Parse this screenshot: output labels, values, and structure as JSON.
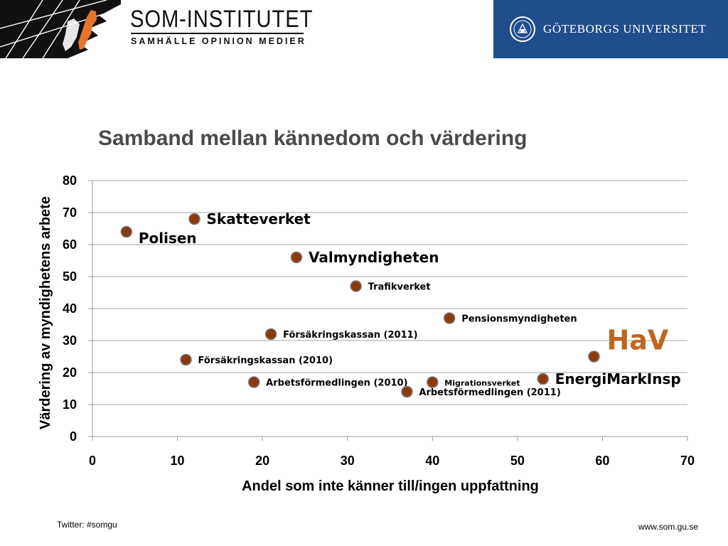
{
  "header": {
    "brand_title": "SOM-INSTITUTET",
    "brand_subtitle": "SAMHÄLLE  OPINION  MEDIER",
    "university": "GÖTEBORGS UNIVERSITET",
    "university_color": "#1f4e8c",
    "logo_accent_color": "#e8742a"
  },
  "footer": {
    "twitter": "Twitter: #somgu",
    "website": "www.som.gu.se"
  },
  "chart_data": {
    "type": "scatter",
    "title": "Samband mellan kännedom och värdering",
    "xlabel": "Andel som inte känner till/ingen uppfattning",
    "ylabel": "Värdering av myndighetens arbete",
    "xlim": [
      0,
      70
    ],
    "ylim": [
      0,
      80
    ],
    "xticks": [
      0,
      10,
      20,
      30,
      40,
      50,
      60,
      70
    ],
    "yticks": [
      0,
      10,
      20,
      30,
      40,
      50,
      60,
      70,
      80
    ],
    "grid": "horizontal",
    "marker_color": "#8b3a0e",
    "highlight_color": "#c0651e",
    "points": [
      {
        "label": "Polisen",
        "x": 4,
        "y": 64,
        "label_size": "large",
        "label_pos": "right-below"
      },
      {
        "label": "Skatteverket",
        "x": 12,
        "y": 68,
        "label_size": "large",
        "label_pos": "right"
      },
      {
        "label": "Valmyndigheten",
        "x": 24,
        "y": 56,
        "label_size": "large",
        "label_pos": "right"
      },
      {
        "label": "Trafikverket",
        "x": 31,
        "y": 47,
        "label_size": "small",
        "label_pos": "right"
      },
      {
        "label": "Pensionsmyndigheten",
        "x": 42,
        "y": 37,
        "label_size": "small",
        "label_pos": "right"
      },
      {
        "label": "Försäkringskassan (2011)",
        "x": 21,
        "y": 32,
        "label_size": "small",
        "label_pos": "right"
      },
      {
        "label": "HaV",
        "x": 59,
        "y": 25,
        "label_size": "huge",
        "label_pos": "right-above",
        "highlight": true
      },
      {
        "label": "Försäkringskassan (2010)",
        "x": 11,
        "y": 24,
        "label_size": "small",
        "label_pos": "right"
      },
      {
        "label": "EnergiMarkInsp",
        "x": 53,
        "y": 18,
        "label_size": "large",
        "label_pos": "right"
      },
      {
        "label": "Arbetsförmedlingen (2010)",
        "x": 19,
        "y": 17,
        "label_size": "small",
        "label_pos": "right"
      },
      {
        "label": "Migrationsverket",
        "x": 40,
        "y": 17,
        "label_size": "tiny",
        "label_pos": "right"
      },
      {
        "label": "Arbetsförmedlingen  (2011)",
        "x": 37,
        "y": 14,
        "label_size": "small",
        "label_pos": "right"
      }
    ]
  }
}
